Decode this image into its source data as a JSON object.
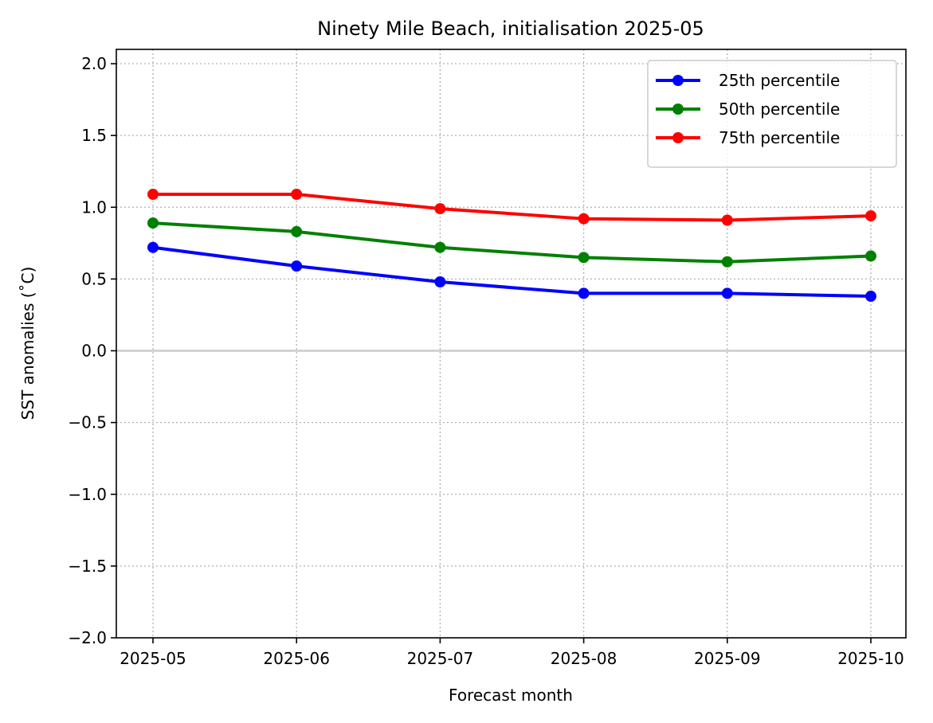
{
  "chart_data": {
    "type": "line",
    "title": "Ninety Mile Beach, initialisation 2025-05",
    "xlabel": "Forecast month",
    "ylabel": "SST anomalies (˚C)",
    "categories": [
      "2025-05",
      "2025-06",
      "2025-07",
      "2025-08",
      "2025-09",
      "2025-10"
    ],
    "ylim": [
      -2.0,
      2.1
    ],
    "yticks": [
      "−2.0",
      "−1.5",
      "−1.0",
      "−0.5",
      "0.0",
      "0.5",
      "1.0",
      "1.5",
      "2.0"
    ],
    "ytick_values": [
      -2.0,
      -1.5,
      -1.0,
      -0.5,
      0.0,
      0.5,
      1.0,
      1.5,
      2.0
    ],
    "grid": true,
    "zero_line": true,
    "legend_position": "top-right",
    "series": [
      {
        "name": "25th percentile",
        "color": "#0000ff",
        "values": [
          0.72,
          0.59,
          0.48,
          0.4,
          0.4,
          0.38
        ]
      },
      {
        "name": "50th percentile",
        "color": "#008000",
        "values": [
          0.89,
          0.83,
          0.72,
          0.65,
          0.62,
          0.66
        ]
      },
      {
        "name": "75th percentile",
        "color": "#ff0000",
        "values": [
          1.09,
          1.09,
          0.99,
          0.92,
          0.91,
          0.94
        ]
      }
    ]
  }
}
